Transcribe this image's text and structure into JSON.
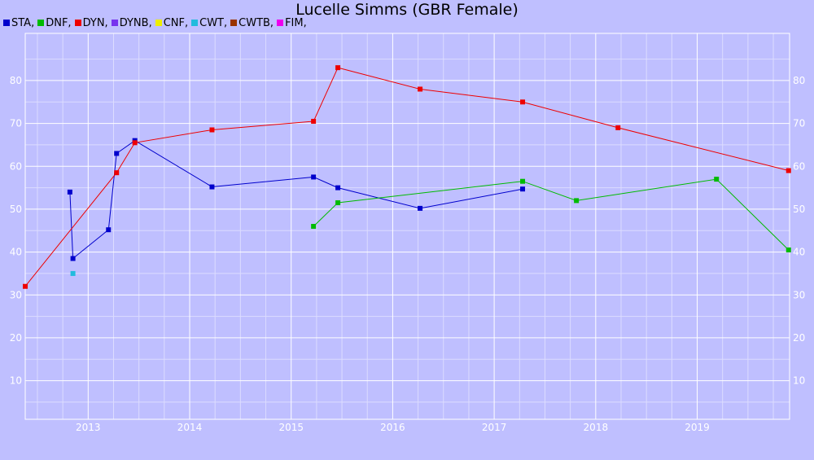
{
  "chart_data": {
    "type": "line",
    "title": "Lucelle Simms (GBR Female)",
    "xlabel": "",
    "ylabel": "",
    "xlim": [
      2012.38,
      2019.91
    ],
    "ylim": [
      1,
      91
    ],
    "x_ticks": [
      2013,
      2014,
      2015,
      2016,
      2017,
      2018,
      2019
    ],
    "y_ticks": [
      10,
      20,
      30,
      40,
      50,
      60,
      70,
      80
    ],
    "grid": true,
    "legend_position": "top-left",
    "series": [
      {
        "name": "STA",
        "color": "#0000cc",
        "points": [
          [
            2012.82,
            54
          ],
          [
            2012.85,
            38.5
          ],
          [
            2013.2,
            45.2
          ],
          [
            2013.28,
            63
          ],
          [
            2013.46,
            66
          ],
          [
            2014.22,
            55.2
          ],
          [
            2015.22,
            57.5
          ],
          [
            2015.46,
            55
          ],
          [
            2016.27,
            50.2
          ],
          [
            2017.28,
            54.7
          ]
        ]
      },
      {
        "name": "DNF",
        "color": "#00bb00",
        "points": [
          [
            2015.22,
            46
          ],
          [
            2015.46,
            51.5
          ],
          [
            2017.28,
            56.5
          ],
          [
            2017.81,
            52
          ],
          [
            2019.19,
            57
          ],
          [
            2019.9,
            40.5
          ]
        ]
      },
      {
        "name": "DYN",
        "color": "#ee0000",
        "points": [
          [
            2012.38,
            32
          ],
          [
            2013.28,
            58.5
          ],
          [
            2013.46,
            65.5
          ],
          [
            2014.22,
            68.5
          ],
          [
            2015.22,
            70.5
          ],
          [
            2015.46,
            83
          ],
          [
            2016.27,
            78
          ],
          [
            2017.28,
            75
          ],
          [
            2018.22,
            69
          ],
          [
            2019.9,
            59
          ]
        ]
      },
      {
        "name": "DYNB",
        "color": "#7733ee",
        "points": []
      },
      {
        "name": "CNF",
        "color": "#eeee00",
        "points": []
      },
      {
        "name": "CWT",
        "color": "#22bbdd",
        "points": [
          [
            2012.85,
            35
          ]
        ]
      },
      {
        "name": "CWTB",
        "color": "#993300",
        "points": []
      },
      {
        "name": "FIM",
        "color": "#ee00ee",
        "points": []
      }
    ]
  }
}
